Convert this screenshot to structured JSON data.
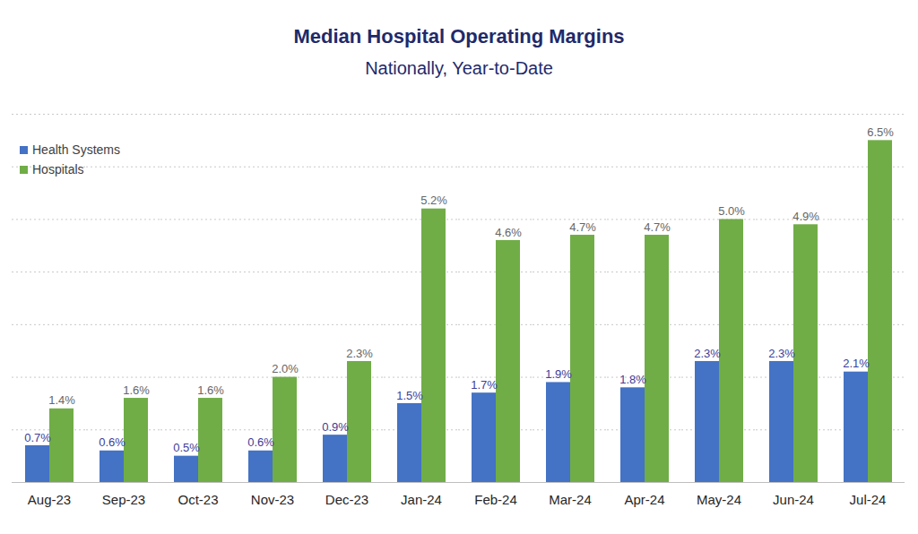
{
  "chart_data": {
    "type": "bar",
    "title": "Median Hospital Operating Margins",
    "subtitle": "Nationally, Year-to-Date",
    "categories": [
      "Aug-23",
      "Sep-23",
      "Oct-23",
      "Nov-23",
      "Dec-23",
      "Jan-24",
      "Feb-24",
      "Mar-24",
      "Apr-24",
      "May-24",
      "Jun-24",
      "Jul-24"
    ],
    "series": [
      {
        "name": "Health Systems",
        "color": "#4472c4",
        "values": [
          0.7,
          0.6,
          0.5,
          0.6,
          0.9,
          1.5,
          1.7,
          1.9,
          1.8,
          2.3,
          2.3,
          2.1
        ],
        "value_labels": [
          "0.7%",
          "0.6%",
          "0.5%",
          "0.6%",
          "0.9%",
          "1.5%",
          "1.7%",
          "1.9%",
          "1.8%",
          "2.3%",
          "2.3%",
          "2.1%"
        ]
      },
      {
        "name": "Hospitals",
        "color": "#70ad47",
        "values": [
          1.4,
          1.6,
          1.6,
          2.0,
          2.3,
          5.2,
          4.6,
          4.7,
          4.7,
          5.0,
          4.9,
          6.5
        ],
        "value_labels": [
          "1.4%",
          "1.6%",
          "1.6%",
          "2.0%",
          "2.3%",
          "5.2%",
          "4.6%",
          "4.7%",
          "4.7%",
          "5.0%",
          "4.9%",
          "6.5%"
        ]
      }
    ],
    "ylim": [
      0,
      7
    ],
    "yticks": [
      0,
      1,
      2,
      3,
      4,
      5,
      6,
      7
    ],
    "grid": true,
    "legend": "top-left",
    "data_labels": true,
    "tick_labels": "x"
  }
}
